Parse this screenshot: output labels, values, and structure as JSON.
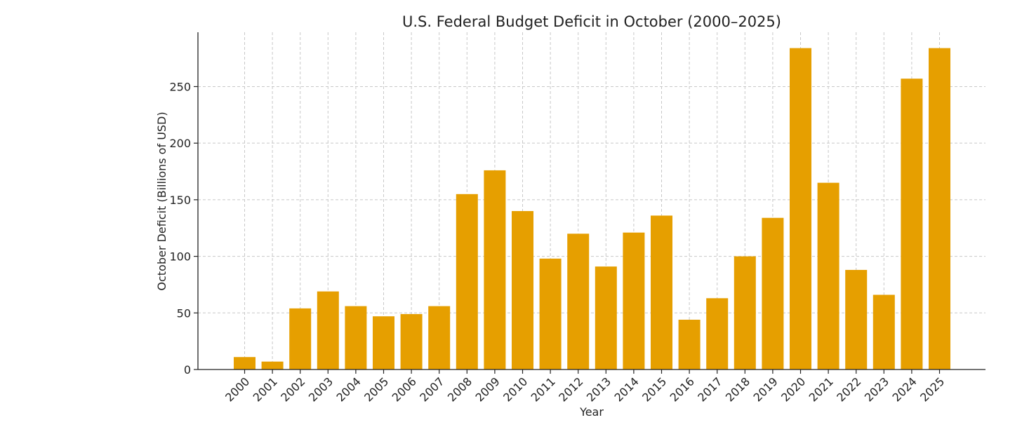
{
  "chart_data": {
    "type": "bar",
    "title": "U.S. Federal Budget Deficit in October (2000–2025)",
    "xlabel": "Year",
    "ylabel": "October Deficit (Billions of USD)",
    "categories": [
      "2000",
      "2001",
      "2002",
      "2003",
      "2004",
      "2005",
      "2006",
      "2007",
      "2008",
      "2009",
      "2010",
      "2011",
      "2012",
      "2013",
      "2014",
      "2015",
      "2016",
      "2017",
      "2018",
      "2019",
      "2020",
      "2021",
      "2022",
      "2023",
      "2024",
      "2025"
    ],
    "values": [
      11,
      7,
      54,
      69,
      56,
      47,
      49,
      56,
      155,
      176,
      140,
      98,
      120,
      91,
      121,
      136,
      44,
      63,
      100,
      134,
      284,
      165,
      88,
      66,
      257,
      284
    ],
    "ylim": [
      0,
      298
    ],
    "yticks": [
      0,
      50,
      100,
      150,
      200,
      250
    ],
    "grid": true,
    "bar_color": "#E69F00"
  }
}
